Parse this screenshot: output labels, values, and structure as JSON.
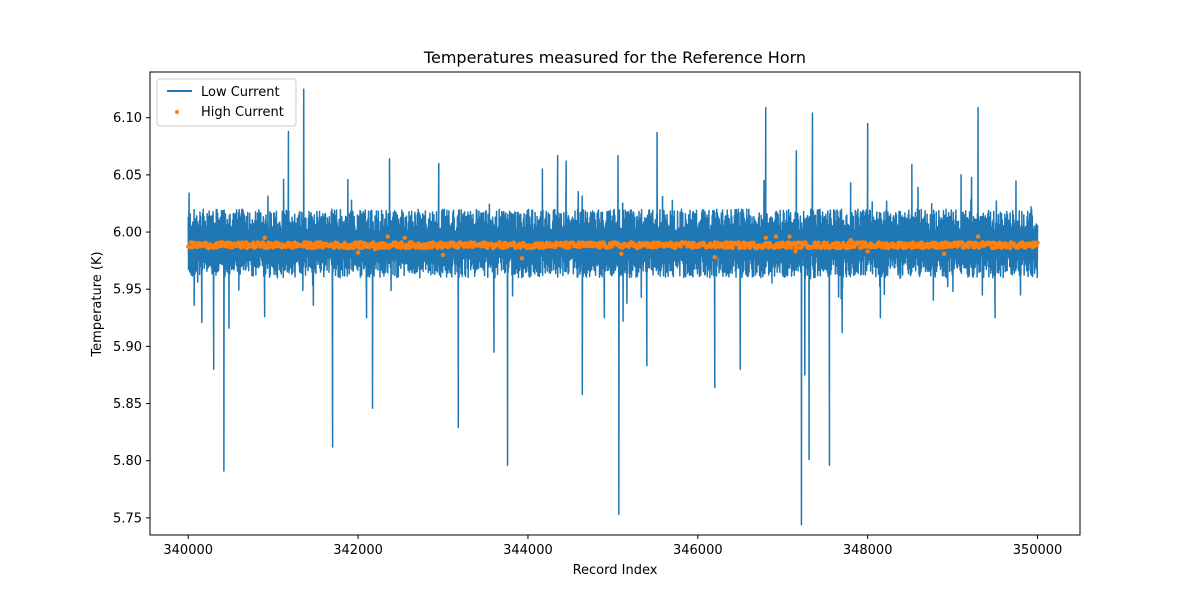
{
  "chart_data": {
    "type": "line",
    "title": "Temperatures measured for the Reference Horn",
    "xlabel": "Record Index",
    "ylabel": "Temperature (K)",
    "xlim": [
      339550,
      350500
    ],
    "ylim": [
      5.735,
      6.14
    ],
    "x_ticks": [
      340000,
      342000,
      344000,
      346000,
      348000,
      350000
    ],
    "x_tick_labels": [
      "340000",
      "342000",
      "344000",
      "346000",
      "348000",
      "350000"
    ],
    "y_ticks": [
      5.75,
      5.8,
      5.85,
      5.9,
      5.95,
      6.0,
      6.05,
      6.1
    ],
    "y_tick_labels": [
      "5.75",
      "5.80",
      "5.85",
      "5.90",
      "5.95",
      "6.00",
      "6.05",
      "6.10"
    ],
    "grid": false,
    "legend_position": "upper-left",
    "series": [
      {
        "name": "Low Current",
        "kind": "line",
        "color": "#1f77b4",
        "x_start": 340000,
        "x_end": 350000,
        "baseline": 5.99,
        "typical_low": 5.96,
        "typical_high": 6.02,
        "spikes": [
          {
            "x": 340010,
            "y": 6.034
          },
          {
            "x": 340070,
            "y": 5.936
          },
          {
            "x": 340160,
            "y": 5.921
          },
          {
            "x": 340300,
            "y": 5.88
          },
          {
            "x": 340420,
            "y": 5.791
          },
          {
            "x": 340480,
            "y": 5.916
          },
          {
            "x": 340900,
            "y": 5.926
          },
          {
            "x": 341180,
            "y": 6.088
          },
          {
            "x": 341360,
            "y": 6.125
          },
          {
            "x": 341700,
            "y": 5.812
          },
          {
            "x": 341880,
            "y": 6.046
          },
          {
            "x": 342100,
            "y": 5.925
          },
          {
            "x": 342170,
            "y": 5.846
          },
          {
            "x": 342370,
            "y": 6.064
          },
          {
            "x": 342950,
            "y": 6.06
          },
          {
            "x": 343180,
            "y": 5.829
          },
          {
            "x": 343600,
            "y": 5.895
          },
          {
            "x": 343760,
            "y": 5.796
          },
          {
            "x": 344170,
            "y": 6.055
          },
          {
            "x": 344350,
            "y": 6.067
          },
          {
            "x": 344450,
            "y": 6.062
          },
          {
            "x": 344640,
            "y": 5.858
          },
          {
            "x": 344900,
            "y": 5.925
          },
          {
            "x": 345060,
            "y": 6.067
          },
          {
            "x": 345070,
            "y": 5.753
          },
          {
            "x": 345120,
            "y": 5.922
          },
          {
            "x": 345400,
            "y": 5.883
          },
          {
            "x": 345520,
            "y": 6.087
          },
          {
            "x": 346200,
            "y": 5.864
          },
          {
            "x": 346500,
            "y": 5.88
          },
          {
            "x": 346780,
            "y": 6.045
          },
          {
            "x": 346800,
            "y": 6.109
          },
          {
            "x": 347160,
            "y": 6.071
          },
          {
            "x": 347220,
            "y": 5.744
          },
          {
            "x": 347260,
            "y": 5.875
          },
          {
            "x": 347310,
            "y": 5.801
          },
          {
            "x": 347350,
            "y": 6.104
          },
          {
            "x": 347550,
            "y": 5.796
          },
          {
            "x": 347700,
            "y": 5.912
          },
          {
            "x": 347800,
            "y": 6.043
          },
          {
            "x": 348000,
            "y": 6.095
          },
          {
            "x": 348150,
            "y": 5.925
          },
          {
            "x": 348520,
            "y": 6.059
          },
          {
            "x": 349100,
            "y": 6.05
          },
          {
            "x": 349300,
            "y": 6.109
          },
          {
            "x": 349500,
            "y": 5.925
          },
          {
            "x": 349800,
            "y": 5.945
          }
        ]
      },
      {
        "name": "High Current",
        "kind": "scatter",
        "color": "#ff7f0e",
        "x_start": 340000,
        "x_end": 350000,
        "baseline": 5.988,
        "typical_low": 5.986,
        "typical_high": 5.991,
        "outliers": [
          {
            "x": 340900,
            "y": 5.995
          },
          {
            "x": 342000,
            "y": 5.982
          },
          {
            "x": 342200,
            "y": 5.985
          },
          {
            "x": 342350,
            "y": 5.996
          },
          {
            "x": 342550,
            "y": 5.995
          },
          {
            "x": 343000,
            "y": 5.98
          },
          {
            "x": 343930,
            "y": 5.977
          },
          {
            "x": 345100,
            "y": 5.981
          },
          {
            "x": 346200,
            "y": 5.978
          },
          {
            "x": 346800,
            "y": 5.995
          },
          {
            "x": 346920,
            "y": 5.996
          },
          {
            "x": 347080,
            "y": 5.996
          },
          {
            "x": 347150,
            "y": 5.983
          },
          {
            "x": 347800,
            "y": 5.993
          },
          {
            "x": 348000,
            "y": 5.983
          },
          {
            "x": 348900,
            "y": 5.981
          },
          {
            "x": 349300,
            "y": 5.996
          },
          {
            "x": 349980,
            "y": 5.99
          }
        ]
      }
    ]
  }
}
